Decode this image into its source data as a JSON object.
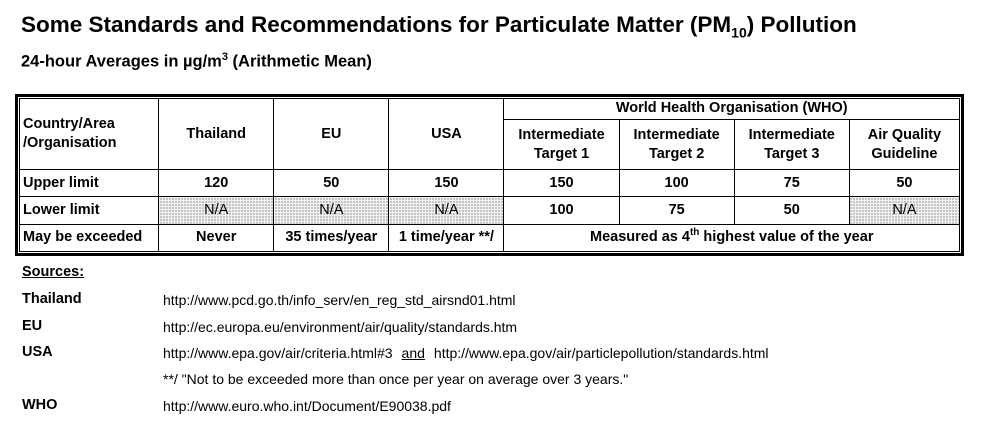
{
  "header": {
    "title_pre": "Some Standards and Recommendations for Particulate Matter (PM",
    "title_sub": "10",
    "title_post": ") Pollution",
    "subtitle_pre": "24-hour Averages in µg/m",
    "subtitle_sup": "3",
    "subtitle_post": " (Arithmetic Mean)"
  },
  "table": {
    "corner": "Country/Area /Organisation",
    "who_group": "World Health Organisation (WHO)",
    "columns": [
      "Thailand",
      "EU",
      "USA",
      "Intermediate Target 1",
      "Intermediate Target 2",
      "Intermediate Target 3",
      "Air Quality Guideline"
    ],
    "rows": [
      {
        "label": "Upper limit",
        "cells": [
          "120",
          "50",
          "150",
          "150",
          "100",
          "75",
          "50"
        ]
      },
      {
        "label": "Lower limit",
        "cells": [
          "N/A",
          "N/A",
          "N/A",
          "100",
          "75",
          "50",
          "N/A"
        ]
      }
    ],
    "exceed": {
      "label": "May be exceeded",
      "thailand": "Never",
      "eu": "35 times/year",
      "usa": "1 time/year **/",
      "who_pre": "Measured as 4",
      "who_sup": "th",
      "who_post": " highest value of the year"
    }
  },
  "sources": {
    "heading": "Sources:",
    "thailand": {
      "label": "Thailand",
      "url": "http://www.pcd.go.th/info_serv/en_reg_std_airsnd01.html"
    },
    "eu": {
      "label": "EU",
      "url": "http://ec.europa.eu/environment/air/quality/standards.htm"
    },
    "usa": {
      "label": "USA",
      "url1": "http://www.epa.gov/air/criteria.html#3",
      "and": "and",
      "url2": "http://www.epa.gov/air/particlepollution/standards.html"
    },
    "note": "**/ \"Not to be exceeded more than once per year on average over 3 years.\"",
    "who": {
      "label": "WHO",
      "url": "http://www.euro.who.int/Document/E90038.pdf"
    }
  }
}
